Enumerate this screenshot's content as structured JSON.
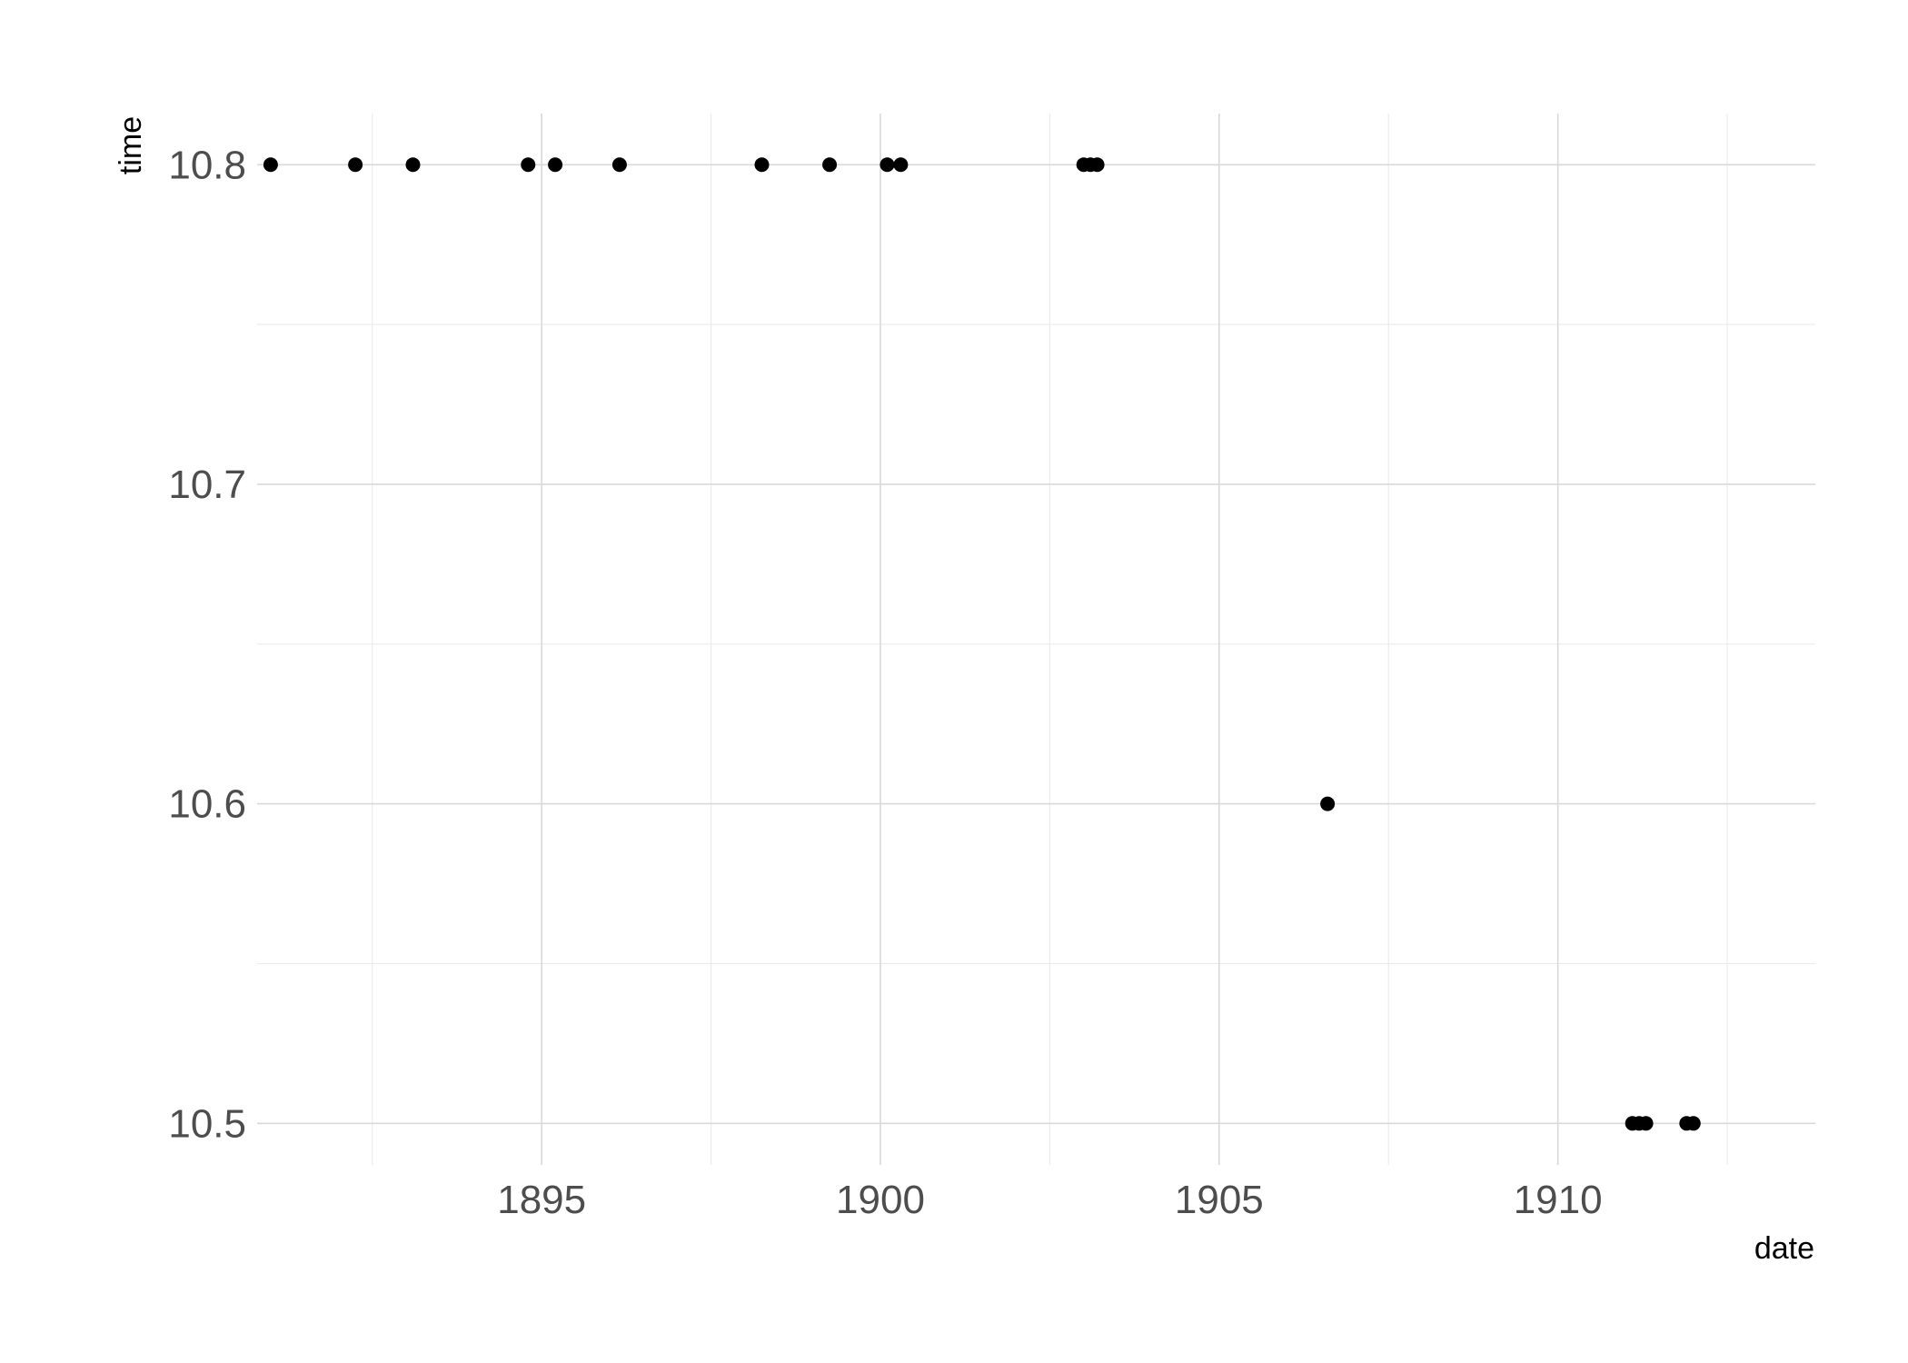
{
  "chart_data": {
    "type": "scatter",
    "title": "",
    "xlabel": "date",
    "ylabel": "time",
    "xlim": [
      1890.8,
      1913.8
    ],
    "ylim": [
      10.487,
      10.816
    ],
    "x_ticks": [
      1895,
      1900,
      1905,
      1910
    ],
    "y_ticks": [
      10.5,
      10.6,
      10.7,
      10.8
    ],
    "grid": true,
    "legend": "none",
    "point_color": "#000000",
    "points": [
      {
        "x": 1891.0,
        "y": 10.8
      },
      {
        "x": 1892.25,
        "y": 10.8
      },
      {
        "x": 1893.1,
        "y": 10.8
      },
      {
        "x": 1894.8,
        "y": 10.8
      },
      {
        "x": 1895.2,
        "y": 10.8
      },
      {
        "x": 1896.15,
        "y": 10.8
      },
      {
        "x": 1898.25,
        "y": 10.8
      },
      {
        "x": 1899.25,
        "y": 10.8
      },
      {
        "x": 1900.1,
        "y": 10.8
      },
      {
        "x": 1900.3,
        "y": 10.8
      },
      {
        "x": 1903.0,
        "y": 10.8
      },
      {
        "x": 1903.1,
        "y": 10.8
      },
      {
        "x": 1903.2,
        "y": 10.8
      },
      {
        "x": 1906.6,
        "y": 10.6
      },
      {
        "x": 1911.1,
        "y": 10.5
      },
      {
        "x": 1911.2,
        "y": 10.5
      },
      {
        "x": 1911.3,
        "y": 10.5
      },
      {
        "x": 1911.9,
        "y": 10.5
      },
      {
        "x": 1912.0,
        "y": 10.5
      }
    ]
  }
}
